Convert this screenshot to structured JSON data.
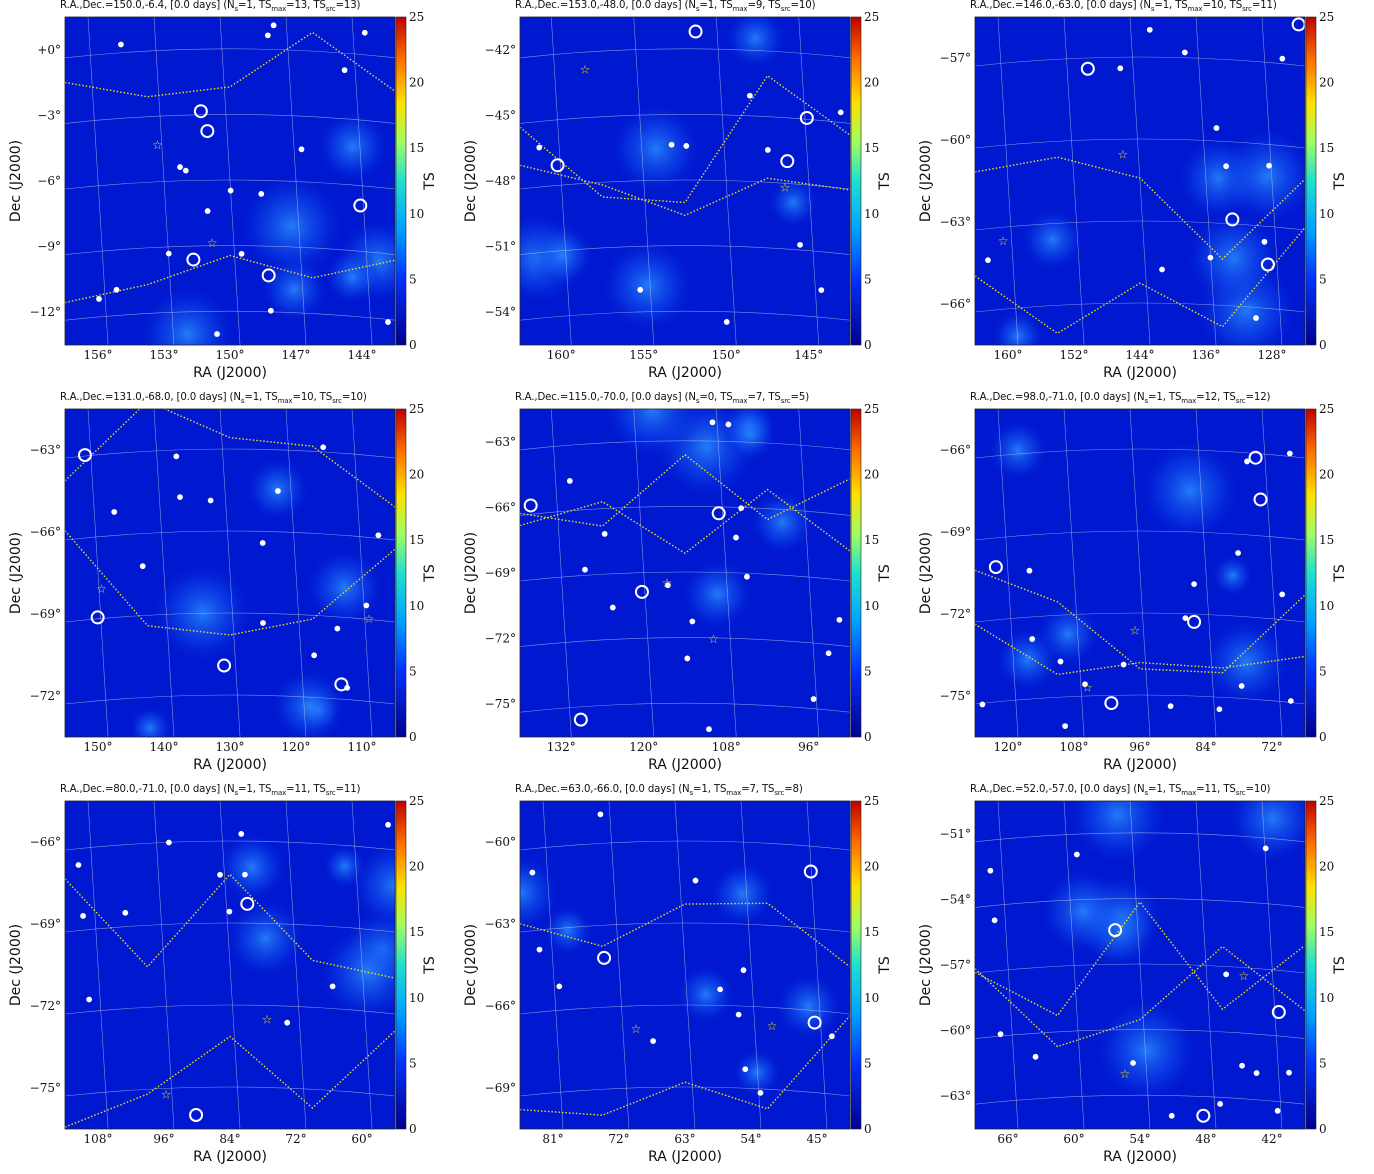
{
  "figure": {
    "colorbar": {
      "label": "TS",
      "min": 0,
      "max": 25,
      "ticks": [
        0,
        5,
        10,
        15,
        20,
        25
      ]
    },
    "x_axis_label": "RA (J2000)",
    "y_axis_label": "Dec (J2000)"
  },
  "panels": [
    {
      "title": {
        "pre": "R.A.,Dec.=150.0,-6.4, [0.0 days] (N",
        "n": "=1, TS",
        "tsmax": "=13, TS",
        "tssrc": "=13)"
      },
      "ra_ticks": [
        "156°",
        "153°",
        "150°",
        "147°",
        "144°"
      ],
      "dec_ticks": [
        "+0°",
        "−3°",
        "−6°",
        "−9°",
        "−12°"
      ]
    },
    {
      "title": {
        "pre": "R.A.,Dec.=153.0,-48.0, [0.0 days] (N",
        "n": "=1, TS",
        "tsmax": "=9, TS",
        "tssrc": "=10)"
      },
      "ra_ticks": [
        "160°",
        "155°",
        "150°",
        "145°"
      ],
      "dec_ticks": [
        "−42°",
        "−45°",
        "−48°",
        "−51°",
        "−54°"
      ]
    },
    {
      "title": {
        "pre": "R.A.,Dec.=146.0,-63.0, [0.0 days] (N",
        "n": "=1, TS",
        "tsmax": "=10, TS",
        "tssrc": "=11)"
      },
      "ra_ticks": [
        "160°",
        "152°",
        "144°",
        "136°",
        "128°"
      ],
      "dec_ticks": [
        "−57°",
        "−60°",
        "−63°",
        "−66°"
      ]
    },
    {
      "title": {
        "pre": "R.A.,Dec.=131.0,-68.0, [0.0 days] (N",
        "n": "=1, TS",
        "tsmax": "=10, TS",
        "tssrc": "=10)"
      },
      "ra_ticks": [
        "150°",
        "140°",
        "130°",
        "120°",
        "110°"
      ],
      "dec_ticks": [
        "−63°",
        "−66°",
        "−69°",
        "−72°"
      ]
    },
    {
      "title": {
        "pre": "R.A.,Dec.=115.0,-70.0, [0.0 days] (N",
        "n": "=0, TS",
        "tsmax": "=7, TS",
        "tssrc": "=5)"
      },
      "ra_ticks": [
        "132°",
        "120°",
        "108°",
        "96°"
      ],
      "dec_ticks": [
        "−63°",
        "−66°",
        "−69°",
        "−72°",
        "−75°"
      ]
    },
    {
      "title": {
        "pre": "R.A.,Dec.=98.0,-71.0, [0.0 days] (N",
        "n": "=1, TS",
        "tsmax": "=12, TS",
        "tssrc": "=12)"
      },
      "ra_ticks": [
        "120°",
        "108°",
        "96°",
        "84°",
        "72°"
      ],
      "dec_ticks": [
        "−66°",
        "−69°",
        "−72°",
        "−75°"
      ]
    },
    {
      "title": {
        "pre": "R.A.,Dec.=80.0,-71.0, [0.0 days] (N",
        "n": "=1, TS",
        "tsmax": "=11, TS",
        "tssrc": "=11)"
      },
      "ra_ticks": [
        "108°",
        "96°",
        "84°",
        "72°",
        "60°"
      ],
      "dec_ticks": [
        "−66°",
        "−69°",
        "−72°",
        "−75°"
      ]
    },
    {
      "title": {
        "pre": "R.A.,Dec.=63.0,-66.0, [0.0 days] (N",
        "n": "=1, TS",
        "tsmax": "=7, TS",
        "tssrc": "=8)"
      },
      "ra_ticks": [
        "81°",
        "72°",
        "63°",
        "54°",
        "45°"
      ],
      "dec_ticks": [
        "−60°",
        "−63°",
        "−66°",
        "−69°"
      ]
    },
    {
      "title": {
        "pre": "R.A.,Dec.=52.0,-57.0, [0.0 days] (N",
        "n": "=1, TS",
        "tsmax": "=11, TS",
        "tssrc": "=10)"
      },
      "ra_ticks": [
        "66°",
        "60°",
        "54°",
        "48°",
        "42°"
      ],
      "dec_ticks": [
        "−51°",
        "−54°",
        "−57°",
        "−60°",
        "−63°"
      ]
    }
  ],
  "chart_data": {
    "type": "heatmap",
    "colorbar_label": "TS",
    "colorbar_range": [
      0,
      25
    ],
    "colors": {
      "background": "#0018d0",
      "high": "#c00000",
      "markers": "#ffffff",
      "contours": "#e8e020",
      "grid": "#b8c0e8"
    },
    "panels": [
      {
        "center_ra": 150.0,
        "center_dec": -6.4,
        "days": 0.0,
        "N": 1,
        "TS_max": 13,
        "TS_src": 13
      },
      {
        "center_ra": 153.0,
        "center_dec": -48.0,
        "days": 0.0,
        "N": 1,
        "TS_max": 9,
        "TS_src": 10
      },
      {
        "center_ra": 146.0,
        "center_dec": -63.0,
        "days": 0.0,
        "N": 1,
        "TS_max": 10,
        "TS_src": 11
      },
      {
        "center_ra": 131.0,
        "center_dec": -68.0,
        "days": 0.0,
        "N": 1,
        "TS_max": 10,
        "TS_src": 10
      },
      {
        "center_ra": 115.0,
        "center_dec": -70.0,
        "days": 0.0,
        "N": 0,
        "TS_max": 7,
        "TS_src": 5
      },
      {
        "center_ra": 98.0,
        "center_dec": -71.0,
        "days": 0.0,
        "N": 1,
        "TS_max": 12,
        "TS_src": 12
      },
      {
        "center_ra": 80.0,
        "center_dec": -71.0,
        "days": 0.0,
        "N": 1,
        "TS_max": 11,
        "TS_src": 11
      },
      {
        "center_ra": 63.0,
        "center_dec": -66.0,
        "days": 0.0,
        "N": 1,
        "TS_max": 7,
        "TS_src": 8
      },
      {
        "center_ra": 52.0,
        "center_dec": -57.0,
        "days": 0.0,
        "N": 1,
        "TS_max": 11,
        "TS_src": 10
      }
    ]
  }
}
